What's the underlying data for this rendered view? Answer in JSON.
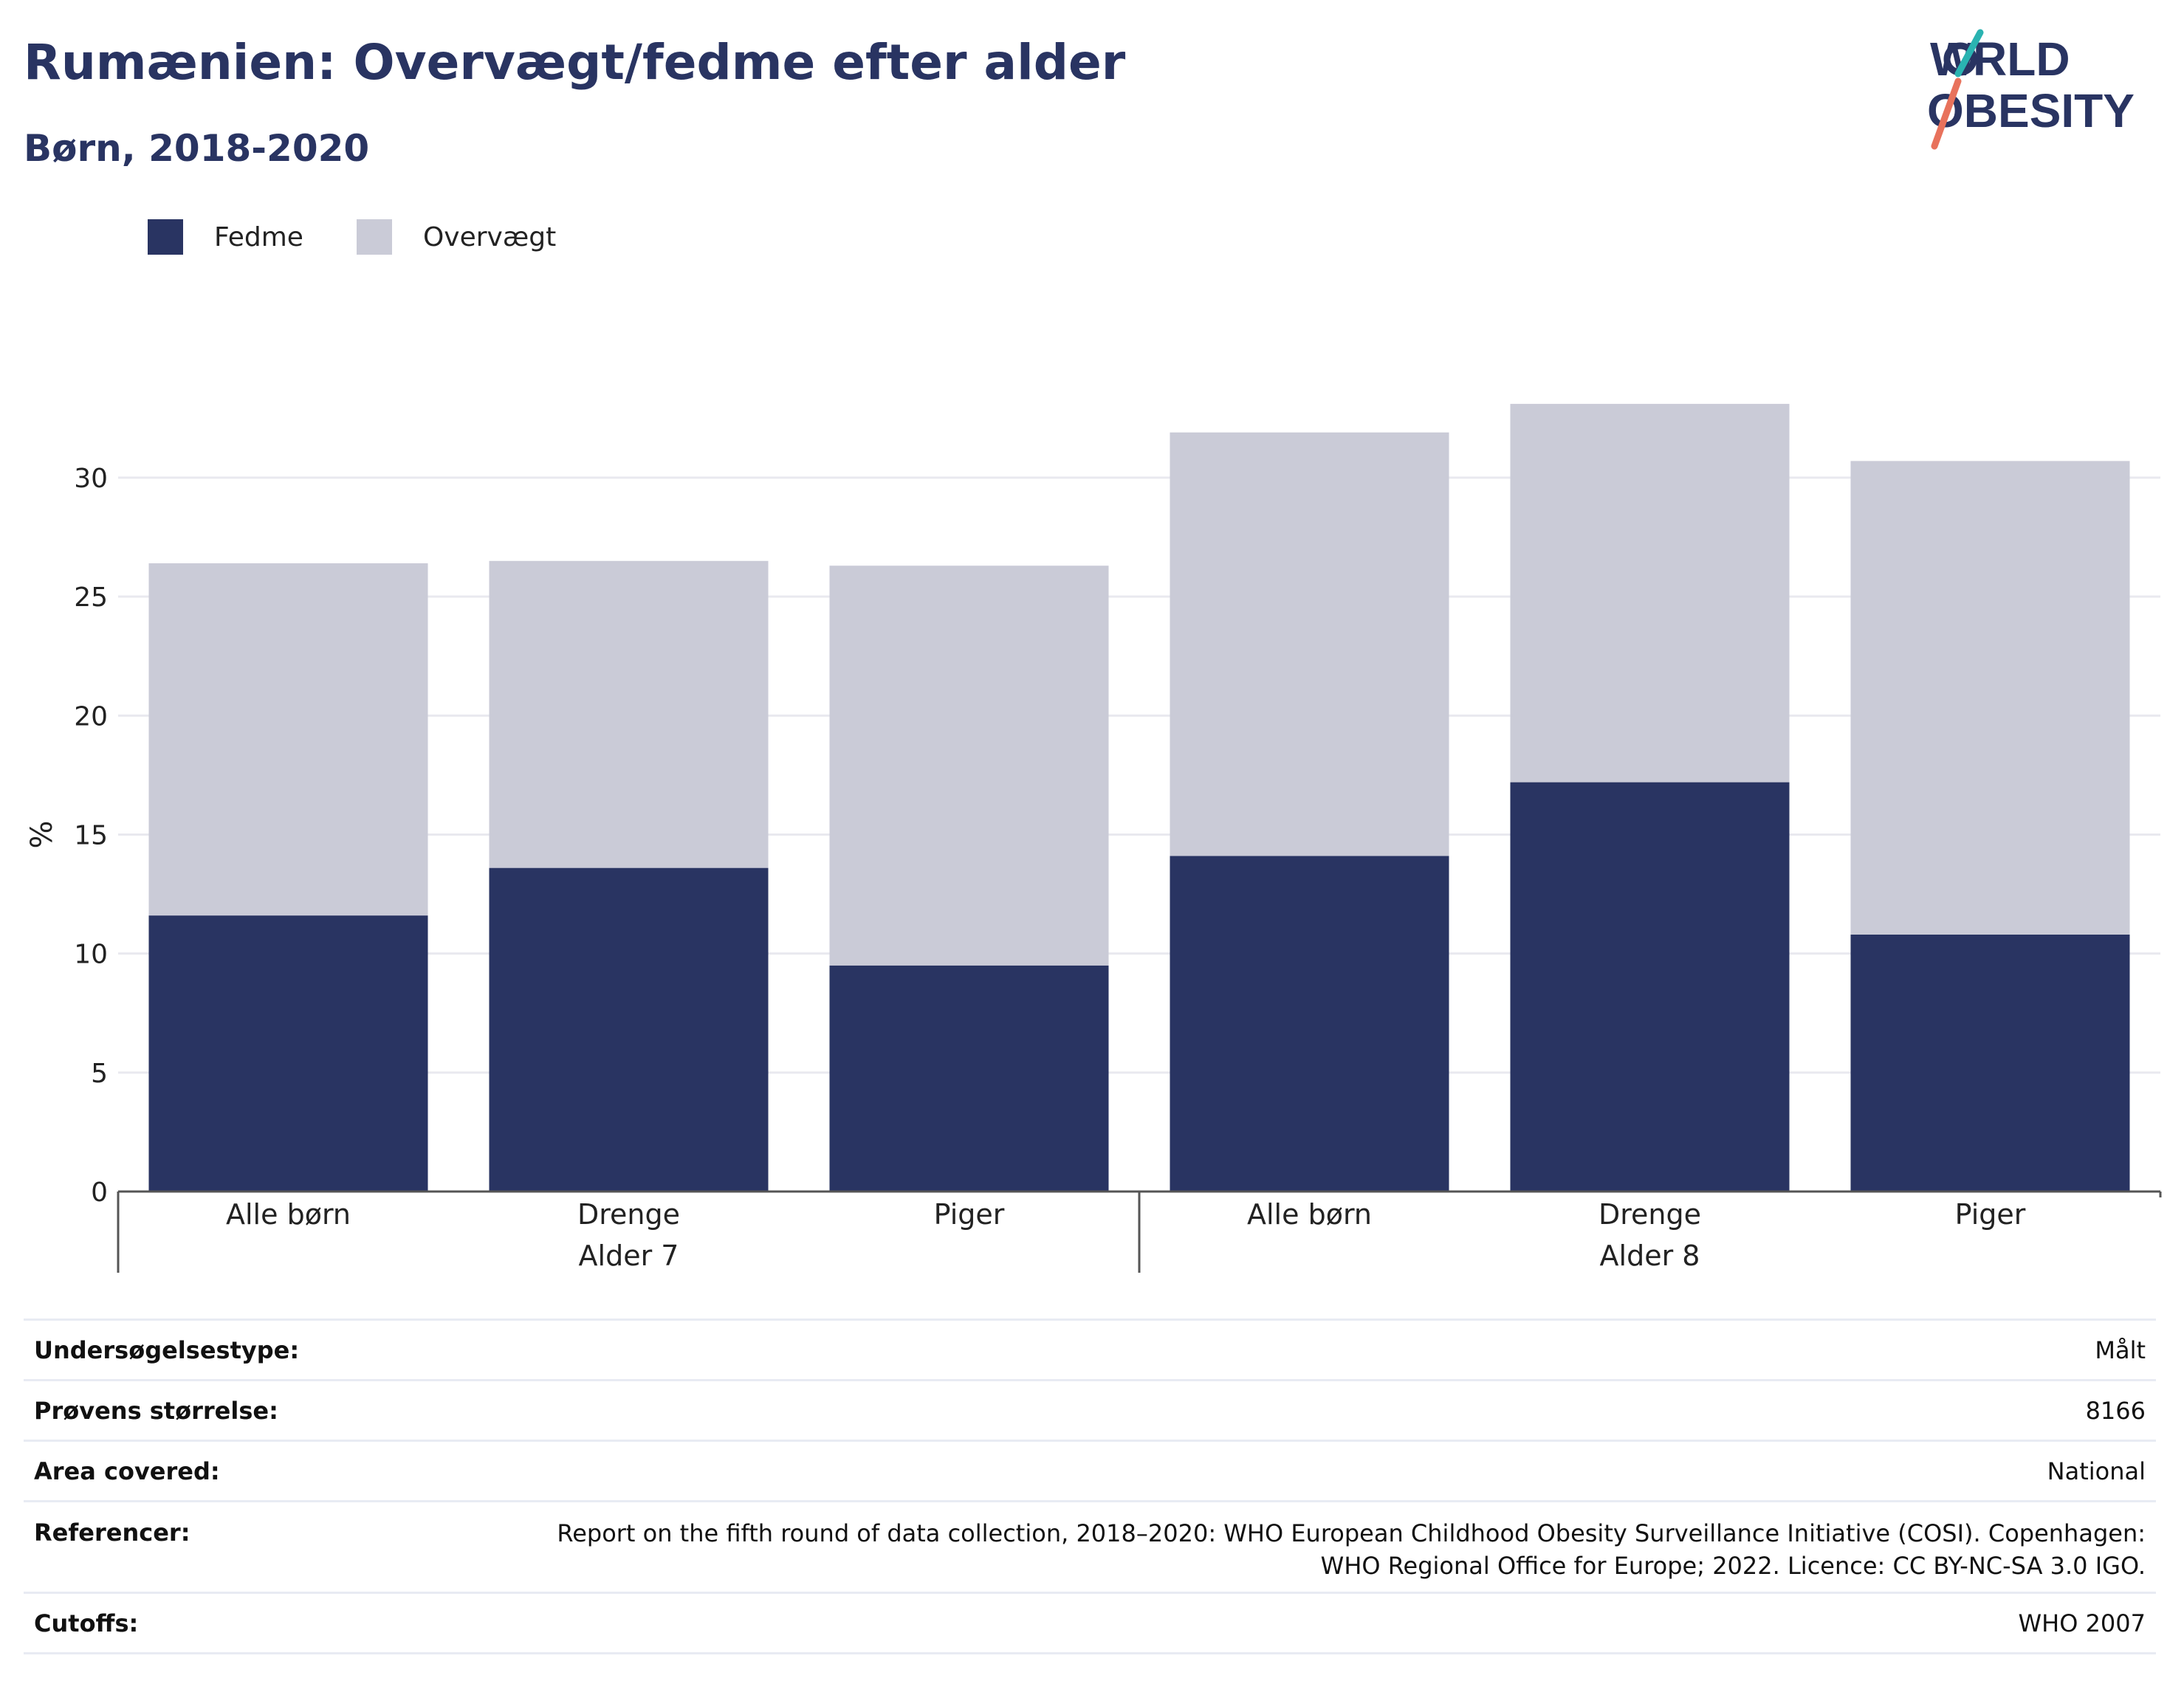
{
  "header": {
    "title": "Rumænien: Overvægt/fedme efter alder",
    "subtitle": "Børn, 2018-2020",
    "logo_text": "WORLD OBESITY"
  },
  "legend": [
    {
      "label": "Fedme",
      "color": "#293462"
    },
    {
      "label": "Overvægt",
      "color": "#cacbd7"
    }
  ],
  "chart_data": {
    "type": "bar",
    "stacked": true,
    "ylabel": "%",
    "ylim": [
      0,
      33
    ],
    "yticks": [
      0,
      5,
      10,
      15,
      20,
      25,
      30
    ],
    "grid": true,
    "legend_position": "top-left",
    "categories": [
      "Alle børn",
      "Drenge",
      "Piger",
      "Alle børn",
      "Drenge",
      "Piger"
    ],
    "groups": [
      {
        "label": "Alder 7",
        "categories": [
          0,
          1,
          2
        ]
      },
      {
        "label": "Alder 8",
        "categories": [
          3,
          4,
          5
        ]
      }
    ],
    "series": [
      {
        "name": "Fedme",
        "color": "#293462",
        "values": [
          11.6,
          13.6,
          9.5,
          14.1,
          17.2,
          10.8
        ]
      },
      {
        "name": "Overvægt",
        "color": "#cacbd7",
        "values": [
          14.8,
          12.9,
          16.8,
          17.8,
          15.9,
          19.9
        ]
      }
    ],
    "totals": [
      26.4,
      26.5,
      26.3,
      31.9,
      33.1,
      30.7
    ]
  },
  "meta": {
    "survey_type": {
      "label": "Undersøgelsestype:",
      "value": "Målt"
    },
    "sample_size": {
      "label": "Prøvens størrelse:",
      "value": "8166"
    },
    "area": {
      "label": "Area covered:",
      "value": "National"
    },
    "references": {
      "label": "Referencer:",
      "value": "Report on the fifth round of data collection, 2018–2020: WHO European Childhood Obesity Surveillance Initiative (COSI). Copenhagen:\nWHO Regional Office for Europe; 2022. Licence: CC BY-NC-SA 3.0 IGO."
    },
    "cutoffs": {
      "label": "Cutoffs:",
      "value": "WHO 2007"
    }
  }
}
